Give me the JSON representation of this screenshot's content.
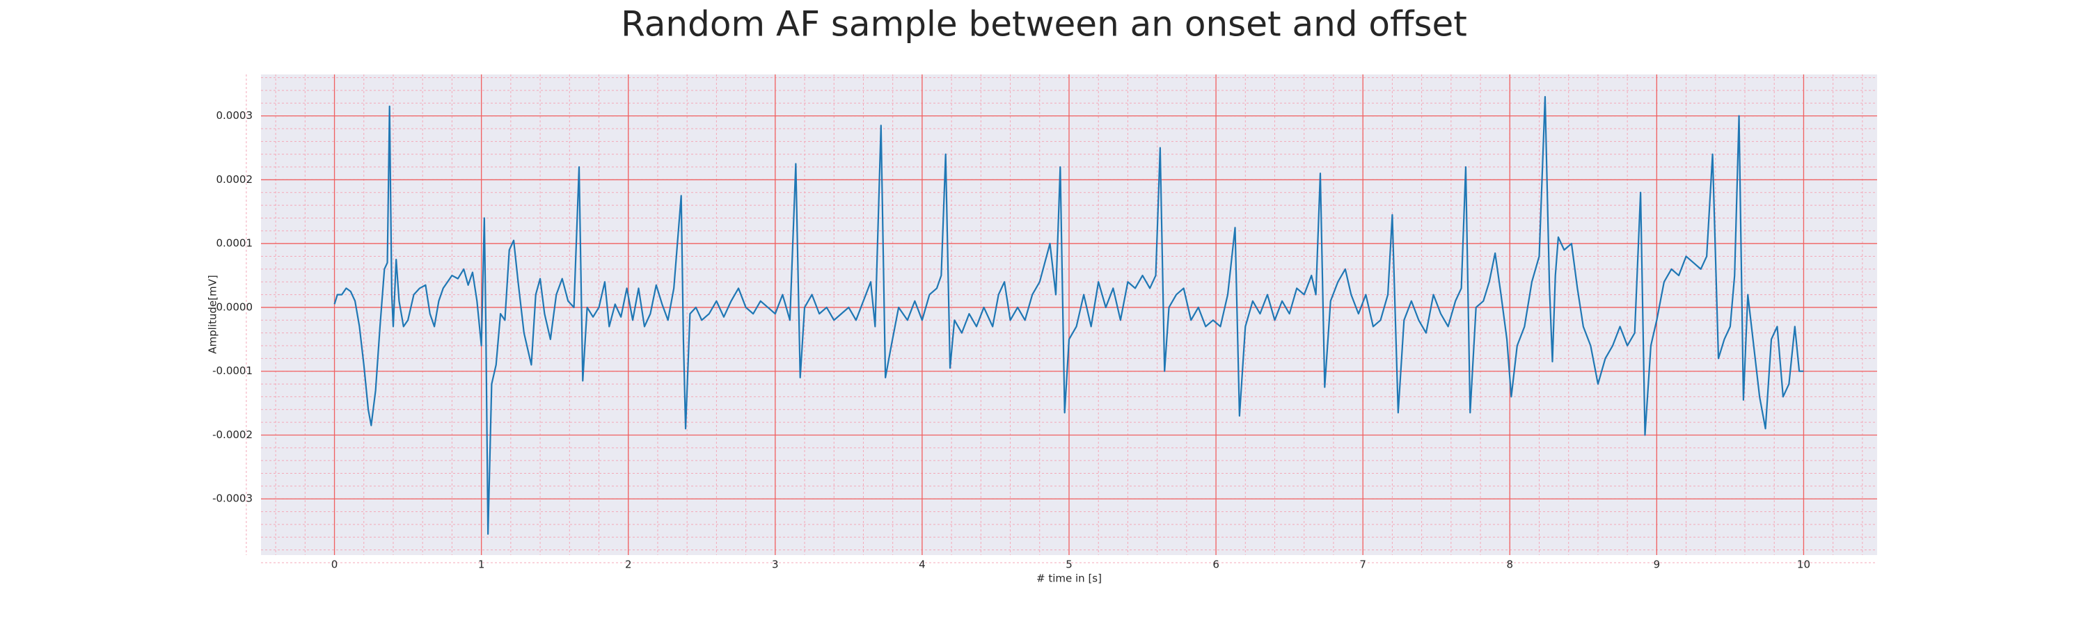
{
  "chart_data": {
    "type": "line",
    "title": "Random AF sample between an onset and offset",
    "xlabel": "# time in [s]",
    "ylabel": "Amplitude[mV]",
    "color": "#1f77b4",
    "grid": true,
    "minor_grid": true,
    "xlim": [
      -0.5,
      10.5
    ],
    "ylim": [
      -0.000388,
      0.000365
    ],
    "xticks": [
      0,
      1,
      2,
      3,
      4,
      5,
      6,
      7,
      8,
      9,
      10
    ],
    "yticks": [
      {
        "value": -0.0003,
        "label": "-0.0003"
      },
      {
        "value": -0.0002,
        "label": "-0.0002"
      },
      {
        "value": -0.0001,
        "label": "-0.0001"
      },
      {
        "value": 0,
        "label": "0.0000"
      },
      {
        "value": 0.0001,
        "label": "0.0001"
      },
      {
        "value": 0.0002,
        "label": "0.0002"
      },
      {
        "value": 0.0003,
        "label": "0.0003"
      }
    ],
    "x": [
      0,
      0.02,
      0.05,
      0.08,
      0.11,
      0.14,
      0.17,
      0.2,
      0.23,
      0.25,
      0.28,
      0.31,
      0.34,
      0.36,
      0.375,
      0.39,
      0.4,
      0.42,
      0.44,
      0.47,
      0.5,
      0.54,
      0.58,
      0.62,
      0.65,
      0.68,
      0.71,
      0.74,
      0.77,
      0.8,
      0.84,
      0.88,
      0.91,
      0.94,
      0.97,
      1.0,
      1.02,
      1.03,
      1.045,
      1.07,
      1.1,
      1.13,
      1.16,
      1.19,
      1.22,
      1.25,
      1.29,
      1.34,
      1.37,
      1.4,
      1.43,
      1.47,
      1.51,
      1.55,
      1.59,
      1.63,
      1.665,
      1.69,
      1.72,
      1.76,
      1.8,
      1.84,
      1.87,
      1.91,
      1.95,
      1.99,
      2.03,
      2.07,
      2.11,
      2.15,
      2.19,
      2.23,
      2.27,
      2.31,
      2.36,
      2.375,
      2.39,
      2.42,
      2.46,
      2.5,
      2.55,
      2.6,
      2.65,
      2.7,
      2.75,
      2.8,
      2.85,
      2.9,
      2.95,
      3.0,
      3.05,
      3.1,
      3.14,
      3.17,
      3.2,
      3.25,
      3.3,
      3.35,
      3.4,
      3.45,
      3.5,
      3.55,
      3.6,
      3.65,
      3.68,
      3.72,
      3.75,
      3.79,
      3.84,
      3.9,
      3.95,
      4.0,
      4.05,
      4.1,
      4.13,
      4.16,
      4.19,
      4.22,
      4.27,
      4.32,
      4.37,
      4.42,
      4.48,
      4.52,
      4.56,
      4.6,
      4.65,
      4.7,
      4.75,
      4.8,
      4.87,
      4.91,
      4.94,
      4.97,
      5.0,
      5.05,
      5.1,
      5.15,
      5.2,
      5.25,
      5.3,
      5.35,
      5.4,
      5.45,
      5.5,
      5.55,
      5.59,
      5.62,
      5.65,
      5.68,
      5.73,
      5.78,
      5.83,
      5.88,
      5.93,
      5.98,
      6.03,
      6.08,
      6.13,
      6.16,
      6.2,
      6.25,
      6.3,
      6.35,
      6.4,
      6.45,
      6.5,
      6.55,
      6.6,
      6.65,
      6.68,
      6.71,
      6.74,
      6.78,
      6.83,
      6.88,
      6.92,
      6.97,
      7.02,
      7.07,
      7.12,
      7.17,
      7.2,
      7.24,
      7.28,
      7.33,
      7.38,
      7.43,
      7.48,
      7.53,
      7.58,
      7.63,
      7.67,
      7.7,
      7.73,
      7.77,
      7.82,
      7.86,
      7.9,
      7.94,
      7.98,
      8.01,
      8.05,
      8.1,
      8.15,
      8.2,
      8.24,
      8.27,
      8.29,
      8.31,
      8.33,
      8.37,
      8.42,
      8.46,
      8.5,
      8.55,
      8.6,
      8.65,
      8.7,
      8.75,
      8.8,
      8.85,
      8.89,
      8.92,
      8.96,
      9.0,
      9.05,
      9.1,
      9.15,
      9.2,
      9.25,
      9.3,
      9.34,
      9.38,
      9.42,
      9.46,
      9.5,
      9.53,
      9.56,
      9.59,
      9.62,
      9.66,
      9.7,
      9.74,
      9.78,
      9.82,
      9.86,
      9.9,
      9.94,
      9.97,
      10.0
    ],
    "values": [
      5e-06,
      2e-05,
      2e-05,
      3e-05,
      2.5e-05,
      1e-05,
      -3e-05,
      -9e-05,
      -0.00016,
      -0.000185,
      -0.00013,
      -3e-05,
      6e-05,
      7e-05,
      0.000315,
      2e-05,
      -3e-05,
      7.5e-05,
      1e-05,
      -3e-05,
      -2e-05,
      2e-05,
      3e-05,
      3.5e-05,
      -1e-05,
      -3e-05,
      1e-05,
      3e-05,
      4e-05,
      5e-05,
      4.5e-05,
      6e-05,
      3.5e-05,
      5.5e-05,
      1e-05,
      -6e-05,
      0.00014,
      -2e-05,
      -0.000355,
      -0.00012,
      -9e-05,
      -1e-05,
      -2e-05,
      9e-05,
      0.000105,
      4e-05,
      -4e-05,
      -9e-05,
      2e-05,
      4.5e-05,
      -1e-05,
      -5e-05,
      2e-05,
      4.5e-05,
      1e-05,
      0,
      0.00022,
      -0.000115,
      0,
      -1.5e-05,
      0,
      4e-05,
      -3e-05,
      5e-06,
      -1.5e-05,
      3e-05,
      -2e-05,
      3e-05,
      -3e-05,
      -1e-05,
      3.5e-05,
      5e-06,
      -2e-05,
      3e-05,
      0.000175,
      -5e-05,
      -0.00019,
      -1e-05,
      0,
      -2e-05,
      -1e-05,
      1e-05,
      -1.5e-05,
      1e-05,
      3e-05,
      0,
      -1e-05,
      1e-05,
      0,
      -1e-05,
      2e-05,
      -2e-05,
      0.000225,
      -0.00011,
      0,
      2e-05,
      -1e-05,
      0,
      -2e-05,
      -1e-05,
      0,
      -2e-05,
      1e-05,
      4e-05,
      -3e-05,
      0.000285,
      -0.00011,
      -6e-05,
      0,
      -2e-05,
      1e-05,
      -2e-05,
      2e-05,
      3e-05,
      5e-05,
      0.00024,
      -9.5e-05,
      -2e-05,
      -4e-05,
      -1e-05,
      -3e-05,
      0,
      -3e-05,
      2e-05,
      4e-05,
      -2e-05,
      0,
      -2e-05,
      2e-05,
      4e-05,
      0.0001,
      2e-05,
      0.00022,
      -0.000165,
      -5e-05,
      -3e-05,
      2e-05,
      -3e-05,
      4e-05,
      0,
      3e-05,
      -2e-05,
      4e-05,
      3e-05,
      5e-05,
      3e-05,
      5e-05,
      0.00025,
      -0.0001,
      0,
      2e-05,
      3e-05,
      -2e-05,
      0,
      -3e-05,
      -2e-05,
      -3e-05,
      2e-05,
      0.000125,
      -0.00017,
      -3e-05,
      1e-05,
      -1e-05,
      2e-05,
      -2e-05,
      1e-05,
      -1e-05,
      3e-05,
      2e-05,
      5e-05,
      2e-05,
      0.00021,
      -0.000125,
      1e-05,
      4e-05,
      6e-05,
      2e-05,
      -1e-05,
      2e-05,
      -3e-05,
      -2e-05,
      2e-05,
      0.000145,
      -0.000165,
      -2e-05,
      1e-05,
      -2e-05,
      -4e-05,
      2e-05,
      -1e-05,
      -3e-05,
      1e-05,
      3e-05,
      0.00022,
      -0.000165,
      0,
      1e-05,
      4e-05,
      8.5e-05,
      2e-05,
      -5e-05,
      -0.00014,
      -6e-05,
      -3e-05,
      4e-05,
      8e-05,
      0.00033,
      3e-05,
      -8.5e-05,
      5e-05,
      0.00011,
      9e-05,
      0.0001,
      3e-05,
      -3e-05,
      -6e-05,
      -0.00012,
      -8e-05,
      -6e-05,
      -3e-05,
      -6e-05,
      -4e-05,
      0.00018,
      -0.0002,
      -6e-05,
      -2e-05,
      4e-05,
      6e-05,
      5e-05,
      8e-05,
      7e-05,
      6e-05,
      8e-05,
      0.00024,
      -8e-05,
      -5e-05,
      -3e-05,
      5e-05,
      0.0003,
      -0.000145,
      2e-05,
      -6e-05,
      -0.00014,
      -0.00019,
      -5e-05,
      -3e-05,
      -0.00014,
      -0.00012,
      -3e-05,
      -0.0001,
      -0.0001
    ]
  }
}
